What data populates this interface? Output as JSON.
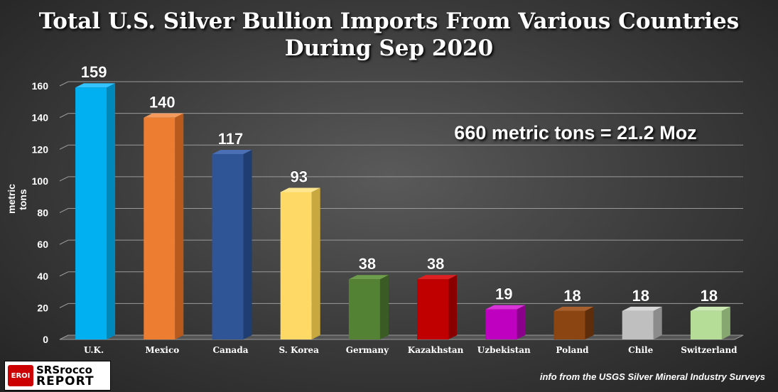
{
  "title_line1": "Total U.S. Silver Bullion Imports From Various Countries",
  "title_line2": "During Sep 2020",
  "annotation": "660 metric tons = 21.2 Moz",
  "source": "info from the USGS Silver Mineral Industry Surveys",
  "logo": {
    "badge": "EROI",
    "line1": "SRSrocco",
    "line2": "REPORT"
  },
  "chart_data": {
    "type": "bar",
    "title": "Total U.S. Silver Bullion Imports From Various Countries During Sep 2020",
    "ylabel": "metric tons",
    "xlabel": "",
    "ylim": [
      0,
      160
    ],
    "yticks": [
      0,
      20,
      40,
      60,
      80,
      100,
      120,
      140,
      160
    ],
    "grid": true,
    "categories": [
      "U.K.",
      "Mexico",
      "Canada",
      "S. Korea",
      "Germany",
      "Kazakhstan",
      "Uzbekistan",
      "Poland",
      "Chile",
      "Switzerland"
    ],
    "values": [
      159,
      140,
      117,
      93,
      38,
      38,
      19,
      18,
      18,
      18
    ],
    "colors": [
      "#00b0f0",
      "#ed7d31",
      "#2f5597",
      "#ffd966",
      "#548235",
      "#c00000",
      "#c000c0",
      "#8b4513",
      "#bfbfbf",
      "#b6dd98"
    ],
    "side_colors": [
      "#0088bb",
      "#b85a1e",
      "#1f3d70",
      "#c9a93f",
      "#3a5c24",
      "#8a0000",
      "#8a008a",
      "#5e2d0b",
      "#8c8c8c",
      "#86a870"
    ],
    "top_colors": [
      "#33c4ff",
      "#f39a5c",
      "#4a6fb5",
      "#ffe691",
      "#6e9e4c",
      "#e02020",
      "#d933d9",
      "#a8602e",
      "#d9d9d9",
      "#cceab4"
    ]
  }
}
